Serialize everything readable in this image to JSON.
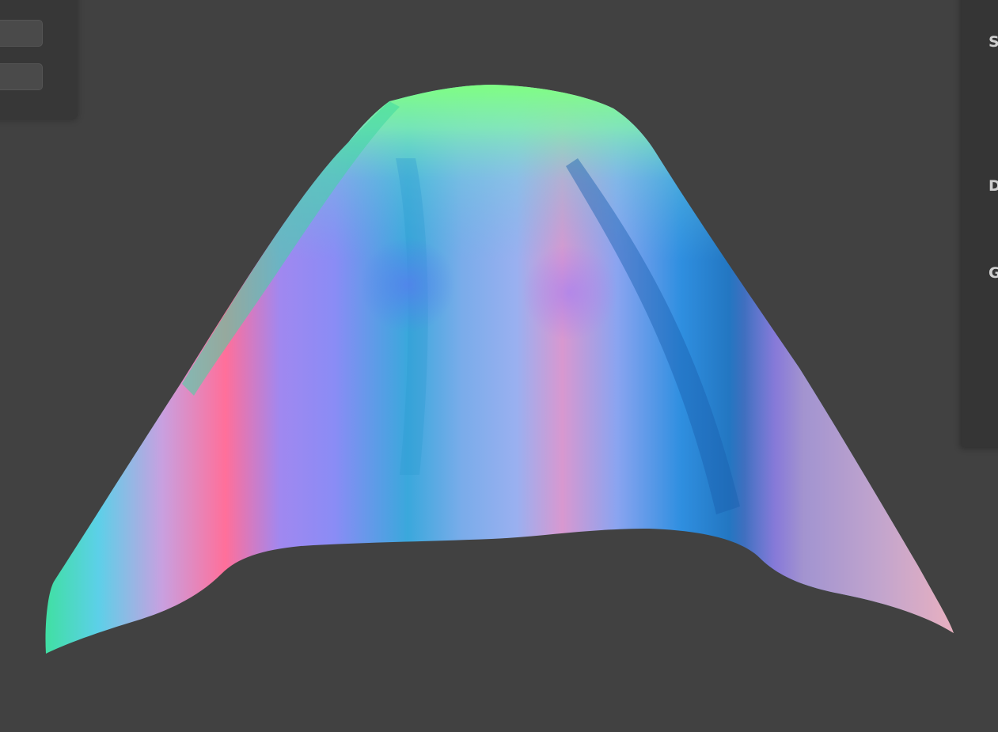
{
  "viewport": {
    "background": "#414141",
    "object": "normal-shaded-surface",
    "gradient_colors": [
      "#3fe0a0",
      "#5cd0e8",
      "#ff6f9a",
      "#8a8cf5",
      "#3aa8dc",
      "#9ab0f0",
      "#d898d0",
      "#2f8fe0",
      "#1f6fb8",
      "#e8e0c0",
      "#7fff80"
    ]
  },
  "toolbar": {
    "buttons": [
      {
        "icon": "tool-button"
      },
      {
        "icon": "tool-button"
      }
    ]
  },
  "settings": {
    "sections": [
      {
        "label": "S"
      },
      {
        "label": "D"
      },
      {
        "label": "G"
      }
    ]
  }
}
